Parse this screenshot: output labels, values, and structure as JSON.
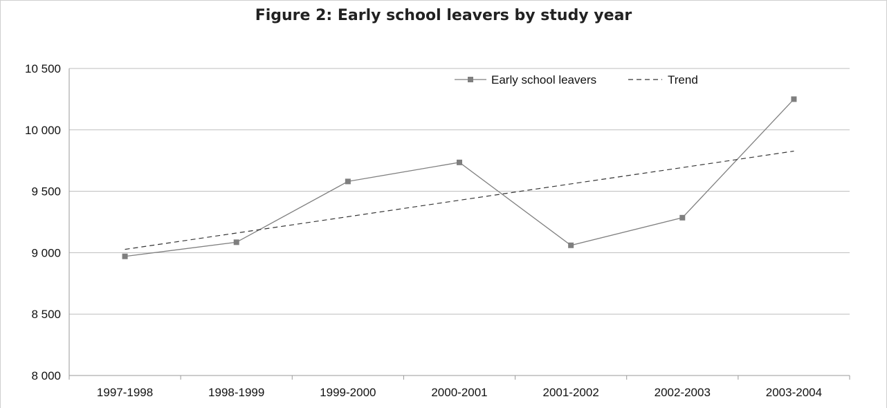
{
  "chart_data": {
    "type": "line",
    "title": "Figure 2: Early school leavers by study year",
    "categories": [
      "1997-1998",
      "1998-1999",
      "1999-2000",
      "2000-2001",
      "2001-2002",
      "2002-2003",
      "2003-2004"
    ],
    "series": [
      {
        "name": "Early school leavers",
        "values": [
          8970,
          9085,
          9580,
          9735,
          9060,
          9285,
          10250
        ],
        "color": "#7f7f7f",
        "style": "solid",
        "marker": "square"
      },
      {
        "name": "Trend",
        "values": [
          9027,
          9160,
          9293,
          9427,
          9560,
          9693,
          9827
        ],
        "color": "#333333",
        "style": "dashed",
        "marker": "none"
      }
    ],
    "yticks": [
      "8 000",
      "8 500",
      "9 000",
      "9 500",
      "10 000",
      "10 500"
    ],
    "ylim": [
      8000,
      10500
    ],
    "xlabel": "",
    "ylabel": "",
    "grid": "horizontal",
    "legend_position": "top-right"
  }
}
